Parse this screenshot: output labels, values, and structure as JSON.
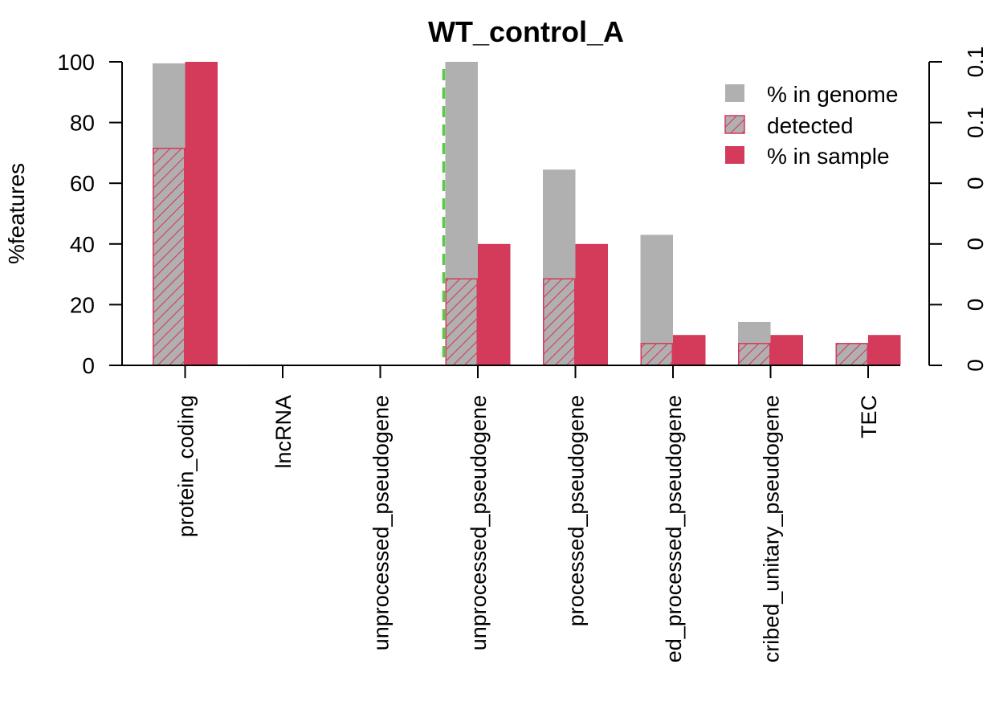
{
  "chart_data": {
    "type": "bar",
    "title": "WT_control_A",
    "ylabel": "%features",
    "xlabel": "",
    "ylim": [
      0,
      100
    ],
    "yticks": [
      0,
      20,
      40,
      60,
      80,
      100
    ],
    "right_axis_ticks": [
      "0",
      "0",
      "0",
      "0",
      "0.1",
      "0.1"
    ],
    "categories": [
      "protein_coding",
      "lncRNA",
      "unprocessed_pseudogene",
      "unprocessed_pseudogene",
      "processed_pseudogene",
      "ed_processed_pseudogene",
      "cribed_unitary_pseudogene",
      "TEC"
    ],
    "series": [
      {
        "name": "% in genome",
        "values": [
          99.5,
          0.3,
          0.1,
          100,
          64.5,
          43,
          14.3,
          0
        ]
      },
      {
        "name": "detected",
        "values": [
          71.5,
          0,
          0,
          28.5,
          28.5,
          7.2,
          7.2,
          7.2
        ]
      },
      {
        "name": "% in sample",
        "values": [
          100,
          0.1,
          0,
          40,
          40,
          10,
          10,
          10
        ]
      }
    ],
    "divider_after_category": 2,
    "colors": {
      "genome": "#b0b0b0",
      "sample": "#d43a5a",
      "hatch": "#d43a5a",
      "divider": "#55cc44"
    },
    "legend": {
      "position": "top-right",
      "entries": [
        "% in genome",
        "detected",
        "% in sample"
      ]
    },
    "grid": false
  }
}
